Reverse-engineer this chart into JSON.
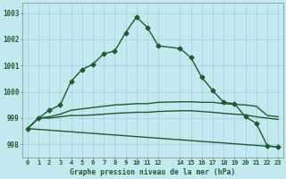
{
  "background_color": "#c4e8f0",
  "grid_color": "#9ecfdc",
  "line_color": "#1e5c2a",
  "title": "Graphe pression niveau de la mer (hPa)",
  "xlim": [
    -0.5,
    23.5
  ],
  "ylim": [
    997.5,
    1003.4
  ],
  "yticks": [
    998,
    999,
    1000,
    1001,
    1002,
    1003
  ],
  "xticks": [
    0,
    1,
    2,
    3,
    4,
    5,
    6,
    7,
    8,
    9,
    10,
    11,
    12,
    14,
    15,
    16,
    17,
    18,
    19,
    20,
    21,
    22,
    23
  ],
  "series": [
    {
      "x": [
        0,
        1,
        2,
        3,
        4,
        5,
        6,
        7,
        8,
        9,
        10,
        11,
        12,
        14,
        15,
        16,
        17,
        18,
        19,
        20,
        21,
        22,
        23
      ],
      "y": [
        998.6,
        999.0,
        999.3,
        999.5,
        1000.4,
        1000.85,
        1001.05,
        1001.45,
        1001.55,
        1002.25,
        1002.85,
        1002.45,
        1001.75,
        1001.65,
        1001.3,
        1000.55,
        1000.05,
        999.6,
        999.55,
        999.05,
        998.8,
        997.95,
        997.9
      ],
      "marker": "D",
      "markersize": 2.5,
      "linewidth": 1.0
    },
    {
      "x": [
        0,
        1,
        2,
        3,
        4,
        5,
        6,
        7,
        8,
        9,
        10,
        11,
        12,
        14,
        15,
        16,
        17,
        18,
        19,
        20,
        21,
        22,
        23
      ],
      "y": [
        998.6,
        999.0,
        999.05,
        999.15,
        999.3,
        999.35,
        999.4,
        999.45,
        999.5,
        999.52,
        999.55,
        999.55,
        999.6,
        999.62,
        999.62,
        999.6,
        999.6,
        999.55,
        999.52,
        999.5,
        999.45,
        999.1,
        999.05
      ],
      "marker": null,
      "markersize": 0,
      "linewidth": 1.0
    },
    {
      "x": [
        0,
        1,
        2,
        3,
        4,
        5,
        6,
        7,
        8,
        9,
        10,
        11,
        12,
        14,
        15,
        16,
        17,
        18,
        19,
        20,
        21,
        22,
        23
      ],
      "y": [
        998.6,
        999.0,
        999.0,
        999.05,
        999.1,
        999.1,
        999.12,
        999.15,
        999.18,
        999.2,
        999.22,
        999.22,
        999.25,
        999.28,
        999.28,
        999.25,
        999.22,
        999.18,
        999.15,
        999.12,
        999.05,
        999.0,
        998.95
      ],
      "marker": null,
      "markersize": 0,
      "linewidth": 1.0
    },
    {
      "x": [
        0,
        23
      ],
      "y": [
        998.6,
        997.9
      ],
      "marker": null,
      "markersize": 0,
      "linewidth": 1.0
    }
  ]
}
